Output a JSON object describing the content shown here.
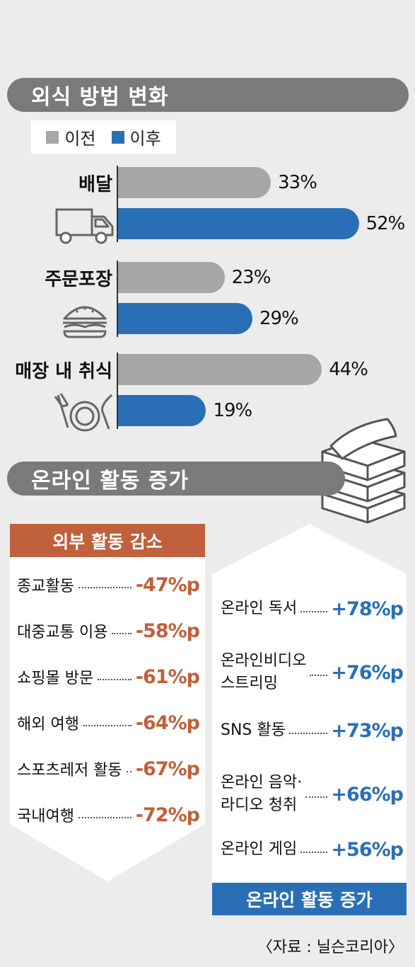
{
  "section1": {
    "title": "외식 방법 변화"
  },
  "legend": {
    "before_label": "이전",
    "after_label": "이후"
  },
  "colors": {
    "before": "#a6a6a6",
    "after": "#2a6fb5",
    "decrease": "#c0603c",
    "increase": "#2a6fb5",
    "header": "#7a7a7a"
  },
  "chart_data": {
    "type": "bar",
    "title": "외식 방법 변화",
    "categories": [
      "배달",
      "주문포장",
      "매장 내 취식"
    ],
    "icons": [
      "truck-icon",
      "burger-icon",
      "dining-icon"
    ],
    "series": [
      {
        "name": "이전",
        "values": [
          33,
          23,
          44
        ]
      },
      {
        "name": "이후",
        "values": [
          52,
          29,
          19
        ]
      }
    ],
    "value_suffix": "%",
    "ylim": [
      0,
      60
    ],
    "value_labels": {
      "before": [
        "33%",
        "23%",
        "44%"
      ],
      "after": [
        "52%",
        "29%",
        "19%"
      ]
    }
  },
  "section2": {
    "title": "온라인 활동 증가"
  },
  "outside": {
    "title": "외부 활동 감소",
    "items": [
      {
        "label": "종교활동",
        "value": "-47%p"
      },
      {
        "label": "대중교통 이용",
        "value": "-58%p"
      },
      {
        "label": "쇼핑몰 방문",
        "value": "-61%p"
      },
      {
        "label": "해외 여행",
        "value": "-64%p"
      },
      {
        "label": "스포츠레저 활동",
        "value": "-67%p"
      },
      {
        "label": "국내여행",
        "value": "-72%p"
      }
    ]
  },
  "online": {
    "title": "온라인 활동 증가",
    "items": [
      {
        "label": "온라인 독서",
        "value": "+78%p"
      },
      {
        "label": "온라인비디오\n스트리밍",
        "value": "+76%p"
      },
      {
        "label": "SNS 활동",
        "value": "+73%p"
      },
      {
        "label": "온라인 음악·\n라디오 청취",
        "value": "+66%p"
      },
      {
        "label": "온라인 게임",
        "value": "+56%p"
      }
    ]
  },
  "source": "〈자료 : 닐슨코리아〉"
}
